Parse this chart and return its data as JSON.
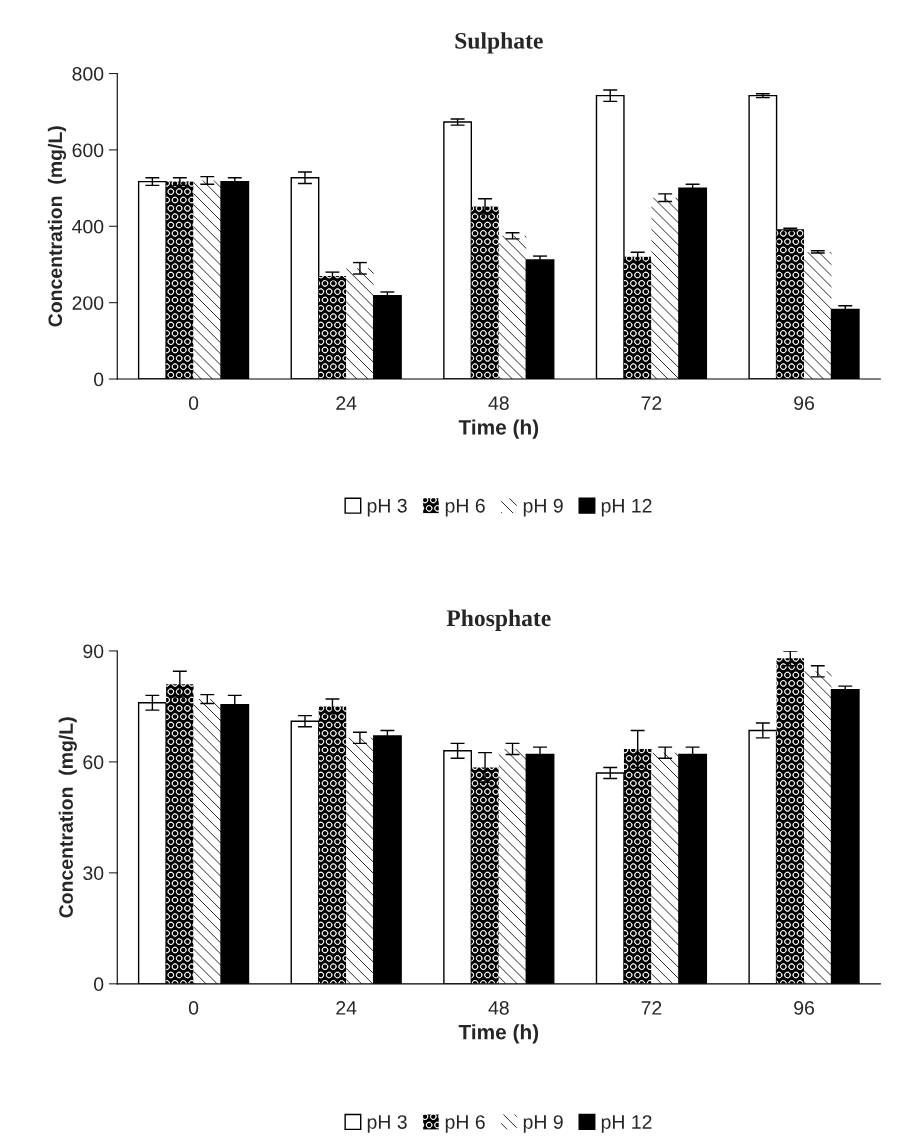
{
  "chart_data": [
    {
      "type": "bar",
      "title": "Sulphate",
      "xlabel": "Time (h)",
      "ylabel": "Concentration  (mg/L)",
      "categories": [
        "0",
        "24",
        "48",
        "72",
        "96"
      ],
      "ylim": [
        0,
        800
      ],
      "yticks": [
        0,
        200,
        400,
        600,
        800
      ],
      "grid": false,
      "legend": "bottom",
      "series": [
        {
          "name": "pH 3",
          "color": "#ffffff",
          "values": [
            517,
            527,
            673,
            742,
            742
          ],
          "errors": [
            10,
            15,
            8,
            15,
            5
          ]
        },
        {
          "name": "pH 6",
          "color": "#000000",
          "values": [
            517,
            270,
            452,
            320,
            392
          ],
          "errors": [
            10,
            10,
            20,
            12,
            3
          ]
        },
        {
          "name": "pH 9",
          "color": "#ffffff",
          "values": [
            520,
            290,
            375,
            475,
            333
          ],
          "errors": [
            10,
            15,
            8,
            10,
            3
          ]
        },
        {
          "name": "pH 12",
          "color": "#000000",
          "values": [
            517,
            218,
            312,
            500,
            182
          ],
          "errors": [
            10,
            10,
            10,
            10,
            10
          ]
        }
      ]
    },
    {
      "type": "bar",
      "title": "Phosphate",
      "xlabel": "Time (h)",
      "ylabel": "Concentration  (mg/L)",
      "categories": [
        "0",
        "24",
        "48",
        "72",
        "96"
      ],
      "ylim": [
        0,
        90
      ],
      "yticks": [
        0,
        30,
        60,
        90
      ],
      "grid": false,
      "legend": "bottom",
      "series": [
        {
          "name": "pH 3",
          "color": "#ffffff",
          "values": [
            76,
            71,
            63,
            57,
            68.5
          ],
          "errors": [
            2,
            1.5,
            2,
            1.5,
            2
          ]
        },
        {
          "name": "pH 6",
          "color": "#000000",
          "values": [
            81,
            75,
            58.5,
            63.5,
            88
          ],
          "errors": [
            3.5,
            2,
            4,
            5,
            2
          ]
        },
        {
          "name": "pH 9",
          "color": "#ffffff",
          "values": [
            77,
            66.5,
            63.5,
            62.5,
            84.5
          ],
          "errors": [
            1.2,
            1.5,
            1.5,
            1.5,
            1.5
          ]
        },
        {
          "name": "pH 12",
          "color": "#000000",
          "values": [
            75.5,
            67,
            62,
            62,
            79.5
          ],
          "errors": [
            2.5,
            1.5,
            2,
            2,
            1
          ]
        }
      ]
    }
  ]
}
